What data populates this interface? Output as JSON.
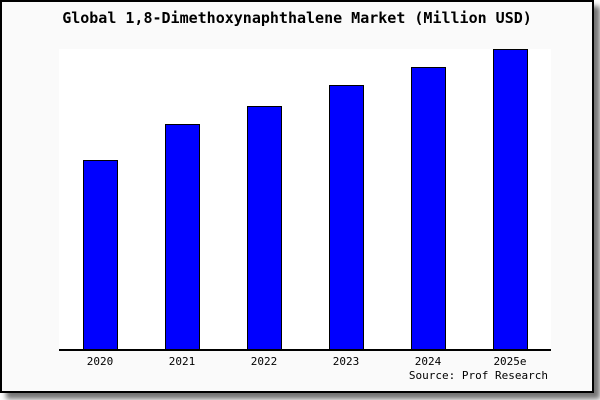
{
  "source_label": "Source: Prof Research",
  "colors": {
    "panel_bg": "#fafafa",
    "plot_bg": "#ffffff",
    "bar": "#0000ff",
    "bar_border": "#000000",
    "axis": "#000000",
    "text": "#000000",
    "shadow": "#8c8c8c"
  },
  "chart_data": {
    "type": "bar",
    "title": "Global 1,8-Dimethoxynaphthalene Market (Million USD)",
    "categories": [
      "2020",
      "2021",
      "2022",
      "2023",
      "2024",
      "2025e"
    ],
    "values": [
      63,
      75,
      81,
      88,
      94,
      100
    ],
    "xlabel": "",
    "ylabel": "",
    "ylim": [
      0,
      100
    ],
    "grid": false,
    "legend": "none",
    "y_axis_shown": false,
    "bar_color": "#0000ff",
    "bar_border_color": "#000000"
  }
}
